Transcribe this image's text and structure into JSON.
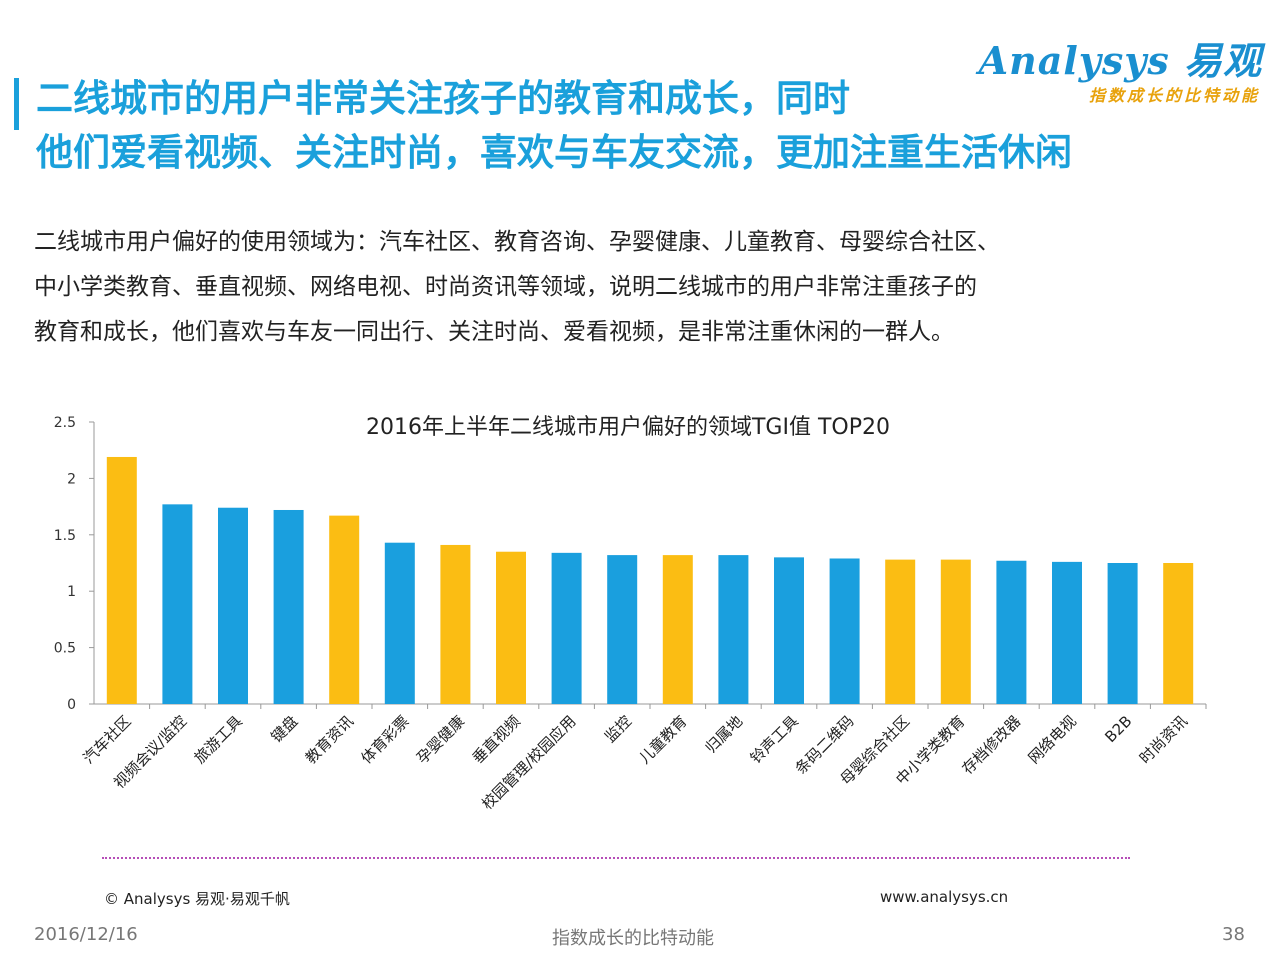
{
  "header": {
    "title_line1": "二线城市的用户非常关注孩子的教育和成长，同时",
    "title_line2": "他们爱看视频、关注时尚，喜欢与车友交流，更加注重生活休闲"
  },
  "logo": {
    "name": "Analysys 易观",
    "tagline": "指数成长的比特动能"
  },
  "intro": {
    "line1": "二线城市用户偏好的使用领域为：汽车社区、教育咨询、孕婴健康、儿童教育、母婴综合社区、",
    "line2": "中小学类教育、垂直视频、网络电视、时尚资讯等领域，说明二线城市的用户非常注重孩子的",
    "line3": "教育和成长，他们喜欢与车友一同出行、关注时尚、爱看视频，是非常注重休闲的一群人。"
  },
  "chart_data": {
    "type": "bar",
    "title": "2016年上半年二线城市用户偏好的领域TGI值 TOP20",
    "xlabel": "",
    "ylabel": "",
    "ylim": [
      0,
      2.5
    ],
    "yticks": [
      "0",
      "0.5",
      "1",
      "1.5",
      "2",
      "2.5"
    ],
    "categories": [
      "汽车社区",
      "视频会议/监控",
      "旅游工具",
      "键盘",
      "教育资讯",
      "体育彩票",
      "孕婴健康",
      "垂直视频",
      "校园管理/校园应用",
      "监控",
      "儿童教育",
      "归属地",
      "铃声工具",
      "条码二维码",
      "母婴综合社区",
      "中小学类教育",
      "存档修改器",
      "网络电视",
      "B2B",
      "时尚资讯"
    ],
    "values": [
      2.19,
      1.77,
      1.74,
      1.72,
      1.67,
      1.43,
      1.41,
      1.35,
      1.34,
      1.32,
      1.32,
      1.32,
      1.3,
      1.29,
      1.28,
      1.28,
      1.27,
      1.26,
      1.25,
      1.25
    ],
    "highlighted": [
      true,
      false,
      false,
      false,
      true,
      false,
      true,
      true,
      false,
      false,
      true,
      false,
      false,
      false,
      true,
      true,
      false,
      false,
      false,
      true
    ],
    "colors": {
      "highlight": "#fbbd13",
      "normal": "#1a9fde"
    }
  },
  "footer": {
    "copyright": "© Analysys 易观·易观千帆",
    "website": "www.analysys.cn",
    "date": "2016/12/16",
    "slogan": "指数成长的比特动能",
    "page": "38"
  }
}
